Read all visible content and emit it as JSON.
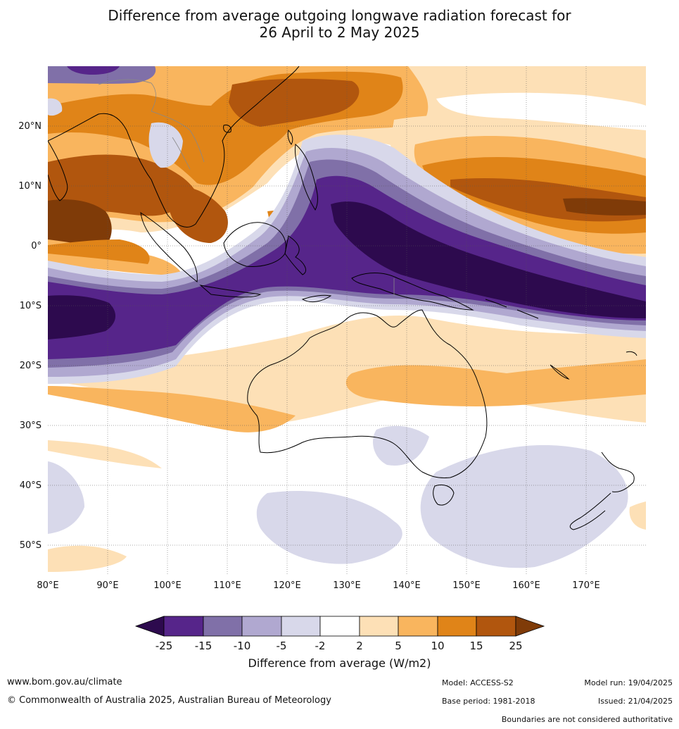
{
  "title": {
    "line1": "Difference from average outgoing longwave radiation forecast for",
    "line2": "26 April to 2 May 2025"
  },
  "map": {
    "lon_ticks": [
      "80°E",
      "90°E",
      "100°E",
      "110°E",
      "120°E",
      "130°E",
      "140°E",
      "150°E",
      "160°E",
      "170°E"
    ],
    "lat_ticks": [
      "20°N",
      "10°N",
      "0°",
      "10°S",
      "20°S",
      "30°S",
      "40°S",
      "50°S"
    ],
    "lon_range": [
      80,
      180
    ],
    "lat_range": [
      -55,
      30
    ],
    "colorbar": {
      "ticks": [
        "-25",
        "-15",
        "-10",
        "-5",
        "-2",
        "2",
        "5",
        "10",
        "15",
        "25"
      ],
      "colors": [
        "#2d0a4e",
        "#56258a",
        "#8070a8",
        "#b0a8d0",
        "#d8d8ea",
        "#ffffff",
        "#fde0b6",
        "#f9b55e",
        "#e08418",
        "#b1560e",
        "#7f3b08"
      ],
      "label": "Difference from average (W/m2)"
    }
  },
  "footer": {
    "url": "www.bom.gov.au/climate",
    "copyright": "© Commonwealth of Australia 2025, Australian Bureau of Meteorology",
    "model": "Model: ACCESS-S2",
    "base_period": "Base period: 1981-2018",
    "model_run": "Model run: 19/04/2025",
    "issued": "Issued: 21/04/2025",
    "disclaimer": "Boundaries are not considered authoritative"
  }
}
